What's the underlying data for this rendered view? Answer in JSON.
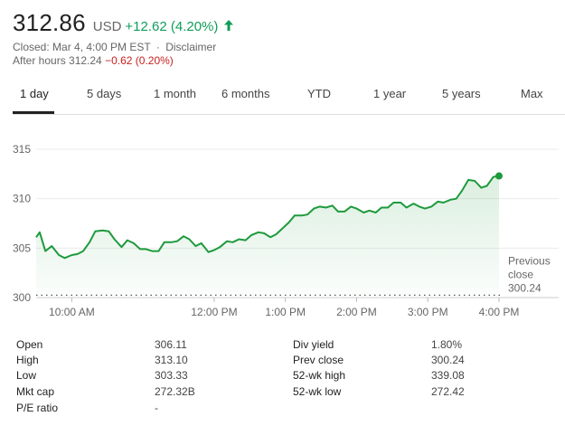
{
  "quote": {
    "price": "312.86",
    "currency": "USD",
    "change": "+12.62 (4.20%)",
    "direction_icon": "arrow-up-icon",
    "up_color": "#0f9d58",
    "down_color": "#c5221f",
    "closed_text": "Closed: Mar 4, 4:00 PM EST",
    "separator": "·",
    "disclaimer": "Disclaimer",
    "after_hours_label": "After hours 312.24",
    "after_hours_change": "−0.62 (0.20%)"
  },
  "tabs": [
    {
      "label": "1 day",
      "active": true
    },
    {
      "label": "5 days",
      "active": false
    },
    {
      "label": "1 month",
      "active": false
    },
    {
      "label": "6 months",
      "active": false
    },
    {
      "label": "YTD",
      "active": false
    },
    {
      "label": "1 year",
      "active": false
    },
    {
      "label": "5 years",
      "active": false
    },
    {
      "label": "Max",
      "active": false
    }
  ],
  "chart_data": {
    "type": "area",
    "y_ticks": [
      "315",
      "310",
      "305",
      "300"
    ],
    "x_ticks": [
      "10:00 AM",
      "12:00 PM",
      "1:00 PM",
      "2:00 PM",
      "3:00 PM",
      "4:00 PM"
    ],
    "x_tick_hours": [
      10,
      12,
      13,
      14,
      15,
      16
    ],
    "ylim": [
      300,
      315
    ],
    "x_range_hours": [
      9.5,
      16
    ],
    "grid": true,
    "line_color": "#1e9a3d",
    "previous_close": {
      "label_line1": "Previous",
      "label_line2": "close",
      "value": "300.24",
      "y": 300.24
    },
    "last_point": {
      "x": 16.0,
      "y": 312.3
    },
    "series": [
      {
        "x": [
          9.5,
          9.55,
          9.63,
          9.72,
          9.82,
          9.9,
          10.0,
          10.08,
          10.16,
          10.25,
          10.33,
          10.43,
          10.52,
          10.6,
          10.7,
          10.78,
          10.87,
          10.96,
          11.04,
          11.13,
          11.22,
          11.3,
          11.4,
          11.48,
          11.57,
          11.65,
          11.74,
          11.82,
          11.92,
          12.0,
          12.08,
          12.18,
          12.26,
          12.35,
          12.44,
          12.52,
          12.62,
          12.7,
          12.79,
          12.87,
          12.96,
          13.05,
          13.13,
          13.23,
          13.31,
          13.4,
          13.48,
          13.57,
          13.66,
          13.74,
          13.83,
          13.92,
          14.0,
          14.1,
          14.18,
          14.27,
          14.35,
          14.44,
          14.52,
          14.62,
          14.7,
          14.8,
          14.88,
          14.96,
          15.05,
          15.14,
          15.22,
          15.32,
          15.4,
          15.48,
          15.57,
          15.66,
          15.75,
          15.83,
          15.92,
          16.0
        ],
        "y": [
          306.1,
          306.6,
          304.7,
          305.2,
          304.3,
          304.0,
          304.3,
          304.4,
          304.7,
          305.6,
          306.7,
          306.8,
          306.7,
          305.9,
          305.1,
          305.8,
          305.5,
          304.9,
          304.9,
          304.7,
          304.7,
          305.6,
          305.6,
          305.7,
          306.2,
          305.9,
          305.2,
          305.5,
          304.6,
          304.8,
          305.1,
          305.7,
          305.6,
          305.9,
          305.8,
          306.3,
          306.6,
          306.5,
          306.1,
          306.4,
          307.0,
          307.6,
          308.3,
          308.3,
          308.4,
          309.0,
          309.2,
          309.1,
          309.3,
          308.7,
          308.7,
          309.2,
          309.0,
          308.6,
          308.8,
          308.6,
          309.1,
          309.1,
          309.6,
          309.6,
          309.1,
          309.5,
          309.2,
          309.0,
          309.2,
          309.7,
          309.6,
          309.9,
          310.0,
          310.8,
          311.9,
          311.8,
          311.1,
          311.3,
          312.2,
          312.3
        ]
      }
    ]
  },
  "stats": {
    "left": [
      {
        "label": "Open",
        "value": "306.11"
      },
      {
        "label": "High",
        "value": "313.10"
      },
      {
        "label": "Low",
        "value": "303.33"
      },
      {
        "label": "Mkt cap",
        "value": "272.32B"
      },
      {
        "label": "P/E ratio",
        "value": "-"
      }
    ],
    "right": [
      {
        "label": "Div yield",
        "value": "1.80%"
      },
      {
        "label": "Prev close",
        "value": "300.24"
      },
      {
        "label": "52-wk high",
        "value": "339.08"
      },
      {
        "label": "52-wk low",
        "value": "272.42"
      }
    ]
  }
}
